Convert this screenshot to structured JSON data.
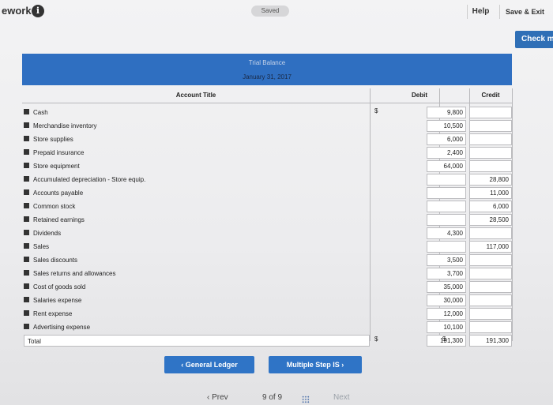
{
  "topbar": {
    "app_name": "ework",
    "info_icon": "info-icon",
    "saved": "Saved",
    "help": "Help",
    "save_exit": "Save & Exit",
    "check": "Check m"
  },
  "header": {
    "title": "Trial Balance",
    "date": "January 31, 2017"
  },
  "table": {
    "columns": {
      "account": "Account Title",
      "debit": "Debit",
      "credit": "Credit"
    },
    "rows": [
      {
        "account": "Cash",
        "debit_sym": "$",
        "debit": "9,800",
        "credit": ""
      },
      {
        "account": "Merchandise inventory",
        "debit": "10,500",
        "credit": ""
      },
      {
        "account": "Store supplies",
        "debit": "6,000",
        "credit": ""
      },
      {
        "account": "Prepaid insurance",
        "debit": "2,400",
        "credit": ""
      },
      {
        "account": "Store equipment",
        "debit": "64,000",
        "credit": ""
      },
      {
        "account": "Accumulated depreciation - Store equip.",
        "debit": "",
        "credit": "28,800"
      },
      {
        "account": "Accounts payable",
        "debit": "",
        "credit": "11,000"
      },
      {
        "account": "Common stock",
        "debit": "",
        "credit": "6,000"
      },
      {
        "account": "Retained earnings",
        "debit": "",
        "credit": "28,500"
      },
      {
        "account": "Dividends",
        "debit": "4,300",
        "credit": ""
      },
      {
        "account": "Sales",
        "debit": "",
        "credit": "117,000"
      },
      {
        "account": "Sales discounts",
        "debit": "3,500",
        "credit": ""
      },
      {
        "account": "Sales returns and allowances",
        "debit": "3,700",
        "credit": ""
      },
      {
        "account": "Cost of goods sold",
        "debit": "35,000",
        "credit": ""
      },
      {
        "account": "Salaries expense",
        "debit": "30,000",
        "credit": ""
      },
      {
        "account": "Rent expense",
        "debit": "12,000",
        "credit": ""
      },
      {
        "account": "Advertising expense",
        "debit": "10,100",
        "credit": ""
      }
    ],
    "total": {
      "label": "Total",
      "debit_sym": "$",
      "debit": "191,300",
      "credit_sym": "$",
      "credit": "191,300"
    }
  },
  "nav": {
    "general_ledger": "‹ General Ledger",
    "multiple_step": "Multiple Step IS ›",
    "prev": "‹ Prev",
    "page": "9 of 9",
    "next": "Next"
  }
}
